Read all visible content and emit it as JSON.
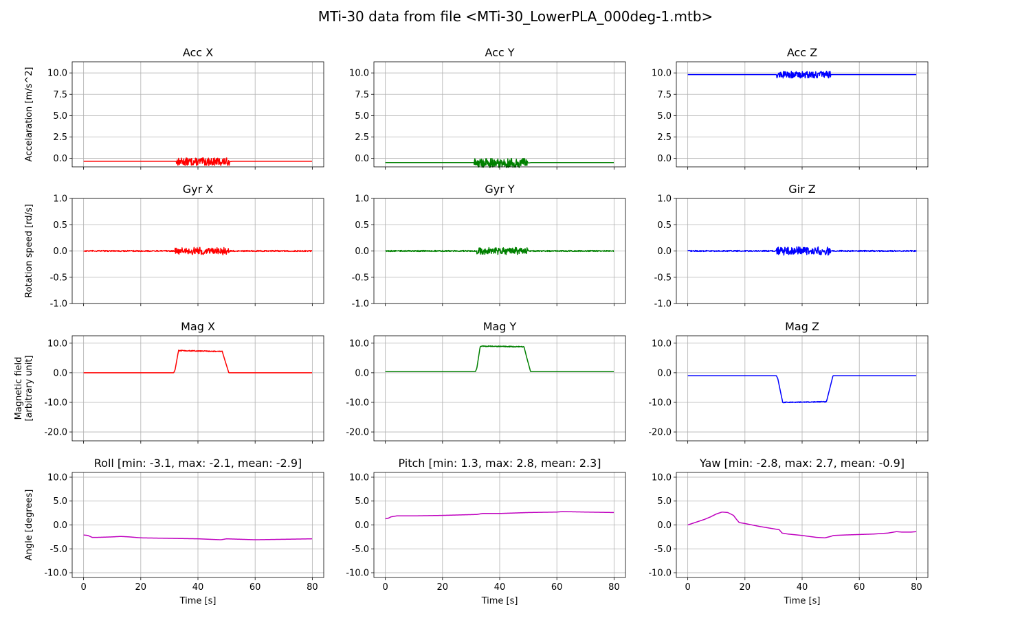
{
  "figure": {
    "title": "MTi-30 data from file <MTi-30_LowerPLA_000deg-1.mtb>"
  },
  "colors": {
    "x": "#ff0000",
    "y": "#008000",
    "z": "#0000ff",
    "angle": "#bf00bf",
    "grid": "#b0b0b0"
  },
  "chart_data": [
    {
      "type": "line",
      "row": 0,
      "col": 0,
      "title": "Acc X",
      "ylabel": "Accelaration [m/s^2]",
      "xlabel": "",
      "xlim": [
        -4,
        84
      ],
      "ylim": [
        -1.0,
        11.3
      ],
      "xticks": [
        0,
        20,
        40,
        60,
        80
      ],
      "show_xticklabels": false,
      "yticks": [
        0.0,
        2.5,
        5.0,
        7.5,
        10.0
      ],
      "ytick_labels": [
        "0.0",
        "2.5",
        "5.0",
        "7.5",
        "10.0"
      ],
      "color": "x",
      "grid": true,
      "series": [
        {
          "x": [
            0,
            32,
            33,
            51,
            52,
            80
          ],
          "y": [
            -0.35,
            -0.35,
            -0.4,
            -0.4,
            -0.35,
            -0.35
          ],
          "noise": [
            {
              "from": 32.5,
              "to": 51,
              "amp": 0.45
            }
          ]
        }
      ]
    },
    {
      "type": "line",
      "row": 0,
      "col": 1,
      "title": "Acc Y",
      "ylabel": "",
      "xlabel": "",
      "xlim": [
        -4,
        84
      ],
      "ylim": [
        -1.0,
        11.3
      ],
      "xticks": [
        0,
        20,
        40,
        60,
        80
      ],
      "show_xticklabels": false,
      "yticks": [
        0.0,
        2.5,
        5.0,
        7.5,
        10.0
      ],
      "ytick_labels": [
        "0.0",
        "2.5",
        "5.0",
        "7.5",
        "10.0"
      ],
      "color": "y",
      "grid": true,
      "series": [
        {
          "x": [
            0,
            31,
            32,
            50,
            51,
            80
          ],
          "y": [
            -0.5,
            -0.5,
            -0.55,
            -0.55,
            -0.5,
            -0.5
          ],
          "noise": [
            {
              "from": 31,
              "to": 50,
              "amp": 0.55
            }
          ]
        }
      ]
    },
    {
      "type": "line",
      "row": 0,
      "col": 2,
      "title": "Acc Z",
      "ylabel": "",
      "xlabel": "",
      "xlim": [
        -4,
        84
      ],
      "ylim": [
        -1.0,
        11.3
      ],
      "xticks": [
        0,
        20,
        40,
        60,
        80
      ],
      "show_xticklabels": false,
      "yticks": [
        0.0,
        2.5,
        5.0,
        7.5,
        10.0
      ],
      "ytick_labels": [
        "0.0",
        "2.5",
        "5.0",
        "7.5",
        "10.0"
      ],
      "color": "z",
      "grid": true,
      "series": [
        {
          "x": [
            0,
            31,
            50,
            80
          ],
          "y": [
            9.8,
            9.8,
            9.8,
            9.8
          ],
          "noise": [
            {
              "from": 31,
              "to": 50,
              "amp": 0.4
            }
          ]
        }
      ]
    },
    {
      "type": "line",
      "row": 1,
      "col": 0,
      "title": "Gyr X",
      "ylabel": "Rotation speed [rd/s]",
      "xlabel": "",
      "xlim": [
        -4,
        84
      ],
      "ylim": [
        -1.0,
        1.0
      ],
      "xticks": [
        0,
        20,
        40,
        60,
        80
      ],
      "show_xticklabels": false,
      "yticks": [
        -1.0,
        -0.5,
        0.0,
        0.5,
        1.0
      ],
      "ytick_labels": [
        "-1.0",
        "-0.5",
        "0.0",
        "0.5",
        "1.0"
      ],
      "color": "x",
      "grid": true,
      "series": [
        {
          "x": [
            0,
            80
          ],
          "y": [
            0.0,
            0.0
          ],
          "noise": [
            {
              "from": 0,
              "to": 80,
              "amp": 0.012
            },
            {
              "from": 32,
              "to": 51,
              "amp": 0.06
            }
          ]
        }
      ]
    },
    {
      "type": "line",
      "row": 1,
      "col": 1,
      "title": "Gyr Y",
      "ylabel": "",
      "xlabel": "",
      "xlim": [
        -4,
        84
      ],
      "ylim": [
        -1.0,
        1.0
      ],
      "xticks": [
        0,
        20,
        40,
        60,
        80
      ],
      "show_xticklabels": false,
      "yticks": [
        -1.0,
        -0.5,
        0.0,
        0.5,
        1.0
      ],
      "ytick_labels": [
        "-1.0",
        "-0.5",
        "0.0",
        "0.5",
        "1.0"
      ],
      "color": "y",
      "grid": true,
      "series": [
        {
          "x": [
            0,
            80
          ],
          "y": [
            0.0,
            0.0
          ],
          "noise": [
            {
              "from": 0,
              "to": 80,
              "amp": 0.012
            },
            {
              "from": 32,
              "to": 50,
              "amp": 0.06
            }
          ]
        }
      ]
    },
    {
      "type": "line",
      "row": 1,
      "col": 2,
      "title": "Gir Z",
      "ylabel": "",
      "xlabel": "",
      "xlim": [
        -4,
        84
      ],
      "ylim": [
        -1.0,
        1.0
      ],
      "xticks": [
        0,
        20,
        40,
        60,
        80
      ],
      "show_xticklabels": false,
      "yticks": [
        -1.0,
        -0.5,
        0.0,
        0.5,
        1.0
      ],
      "ytick_labels": [
        "-1.0",
        "-0.5",
        "0.0",
        "0.5",
        "1.0"
      ],
      "color": "z",
      "grid": true,
      "series": [
        {
          "x": [
            0,
            80
          ],
          "y": [
            0.0,
            0.0
          ],
          "noise": [
            {
              "from": 0,
              "to": 80,
              "amp": 0.012
            },
            {
              "from": 31,
              "to": 50,
              "amp": 0.07
            }
          ]
        }
      ]
    },
    {
      "type": "line",
      "row": 2,
      "col": 0,
      "title": "Mag X",
      "ylabel": "Magnetic field\n[arbitrary unit]",
      "xlabel": "",
      "xlim": [
        -4,
        84
      ],
      "ylim": [
        -23.0,
        12.5
      ],
      "xticks": [
        0,
        20,
        40,
        60,
        80
      ],
      "show_xticklabels": false,
      "yticks": [
        -20.0,
        -10.0,
        0.0,
        10.0
      ],
      "ytick_labels": [
        "-20.0",
        "-10.0",
        "0.0",
        "10.0"
      ],
      "color": "x",
      "grid": true,
      "series": [
        {
          "x": [
            0,
            31.5,
            32,
            33.2,
            48.5,
            49.5,
            50.8,
            80
          ],
          "y": [
            0.0,
            0.0,
            1.0,
            7.5,
            7.2,
            4.0,
            0.0,
            0.0
          ],
          "noise": [
            {
              "from": 33,
              "to": 48.5,
              "amp": 0.15
            }
          ]
        }
      ]
    },
    {
      "type": "line",
      "row": 2,
      "col": 1,
      "title": "Mag Y",
      "ylabel": "",
      "xlabel": "",
      "xlim": [
        -4,
        84
      ],
      "ylim": [
        -23.0,
        12.5
      ],
      "xticks": [
        0,
        20,
        40,
        60,
        80
      ],
      "show_xticklabels": false,
      "yticks": [
        -20.0,
        -10.0,
        0.0,
        10.0
      ],
      "ytick_labels": [
        "-20.0",
        "-10.0",
        "0.0",
        "10.0"
      ],
      "color": "y",
      "grid": true,
      "series": [
        {
          "x": [
            0,
            31.5,
            32,
            33.2,
            48.5,
            49.5,
            50.8,
            80
          ],
          "y": [
            0.4,
            0.4,
            1.5,
            9.0,
            8.8,
            5.0,
            0.4,
            0.4
          ],
          "noise": [
            {
              "from": 33,
              "to": 48.5,
              "amp": 0.15
            }
          ]
        }
      ]
    },
    {
      "type": "line",
      "row": 2,
      "col": 2,
      "title": "Mag Z",
      "ylabel": "",
      "xlabel": "",
      "xlim": [
        -4,
        84
      ],
      "ylim": [
        -23.0,
        12.5
      ],
      "xticks": [
        0,
        20,
        40,
        60,
        80
      ],
      "show_xticklabels": false,
      "yticks": [
        -20.0,
        -10.0,
        0.0,
        10.0
      ],
      "ytick_labels": [
        "-20.0",
        "-10.0",
        "0.0",
        "10.0"
      ],
      "color": "z",
      "grid": true,
      "series": [
        {
          "x": [
            0,
            31,
            31.5,
            33.2,
            48.5,
            49.5,
            50.8,
            80
          ],
          "y": [
            -1.0,
            -1.0,
            -2.0,
            -10.0,
            -9.8,
            -6.0,
            -1.0,
            -1.0
          ],
          "noise": [
            {
              "from": 33,
              "to": 48.5,
              "amp": 0.15
            }
          ]
        }
      ]
    },
    {
      "type": "line",
      "row": 3,
      "col": 0,
      "title": "Roll [min: -3.1, max: -2.1, mean: -2.9]",
      "ylabel": "Angle [degrees]",
      "xlabel": "Time [s]",
      "xlim": [
        -4,
        84
      ],
      "ylim": [
        -11.0,
        11.0
      ],
      "xticks": [
        0,
        20,
        40,
        60,
        80
      ],
      "show_xticklabels": true,
      "yticks": [
        -10.0,
        -5.0,
        0.0,
        5.0,
        10.0
      ],
      "ytick_labels": [
        "-10.0",
        "-5.0",
        "0.0",
        "5.0",
        "10.0"
      ],
      "color": "angle",
      "grid": true,
      "series": [
        {
          "x": [
            0,
            1.5,
            3,
            5,
            10,
            13,
            16,
            20,
            30,
            40,
            48,
            50,
            60,
            70,
            80
          ],
          "y": [
            -2.1,
            -2.2,
            -2.6,
            -2.6,
            -2.5,
            -2.4,
            -2.5,
            -2.7,
            -2.8,
            -2.9,
            -3.1,
            -2.9,
            -3.1,
            -3.0,
            -2.9
          ],
          "noise": []
        }
      ]
    },
    {
      "type": "line",
      "row": 3,
      "col": 1,
      "title": "Pitch [min: 1.3, max: 2.8, mean: 2.3]",
      "ylabel": "",
      "xlabel": "Time [s]",
      "xlim": [
        -4,
        84
      ],
      "ylim": [
        -11.0,
        11.0
      ],
      "xticks": [
        0,
        20,
        40,
        60,
        80
      ],
      "show_xticklabels": true,
      "yticks": [
        -10.0,
        -5.0,
        0.0,
        5.0,
        10.0
      ],
      "ytick_labels": [
        "-10.0",
        "-5.0",
        "0.0",
        "5.0",
        "10.0"
      ],
      "color": "angle",
      "grid": true,
      "series": [
        {
          "x": [
            0,
            1,
            2,
            4,
            10,
            20,
            32,
            34,
            40,
            50,
            60,
            62,
            70,
            80
          ],
          "y": [
            1.3,
            1.4,
            1.7,
            1.9,
            1.9,
            2.0,
            2.2,
            2.4,
            2.4,
            2.6,
            2.7,
            2.8,
            2.7,
            2.6
          ],
          "noise": []
        }
      ]
    },
    {
      "type": "line",
      "row": 3,
      "col": 2,
      "title": "Yaw [min: -2.8, max: 2.7, mean: -0.9]",
      "ylabel": "",
      "xlabel": "Time [s]",
      "xlim": [
        -4,
        84
      ],
      "ylim": [
        -11.0,
        11.0
      ],
      "xticks": [
        0,
        20,
        40,
        60,
        80
      ],
      "show_xticklabels": true,
      "yticks": [
        -10.0,
        -5.0,
        0.0,
        5.0,
        10.0
      ],
      "ytick_labels": [
        "-10.0",
        "-5.0",
        "0.0",
        "5.0",
        "10.0"
      ],
      "color": "angle",
      "grid": true,
      "series": [
        {
          "x": [
            0,
            3,
            6,
            8,
            10,
            12,
            14,
            16,
            17,
            18,
            20,
            25,
            30,
            32,
            33,
            35,
            40,
            45,
            48,
            50,
            51,
            55,
            60,
            65,
            70,
            73,
            75,
            78,
            80
          ],
          "y": [
            0.0,
            0.6,
            1.2,
            1.7,
            2.3,
            2.7,
            2.6,
            2.0,
            1.2,
            0.5,
            0.3,
            -0.3,
            -0.8,
            -1.0,
            -1.7,
            -1.9,
            -2.2,
            -2.6,
            -2.7,
            -2.4,
            -2.2,
            -2.1,
            -2.0,
            -1.9,
            -1.7,
            -1.4,
            -1.5,
            -1.5,
            -1.4
          ],
          "noise": []
        }
      ]
    }
  ]
}
